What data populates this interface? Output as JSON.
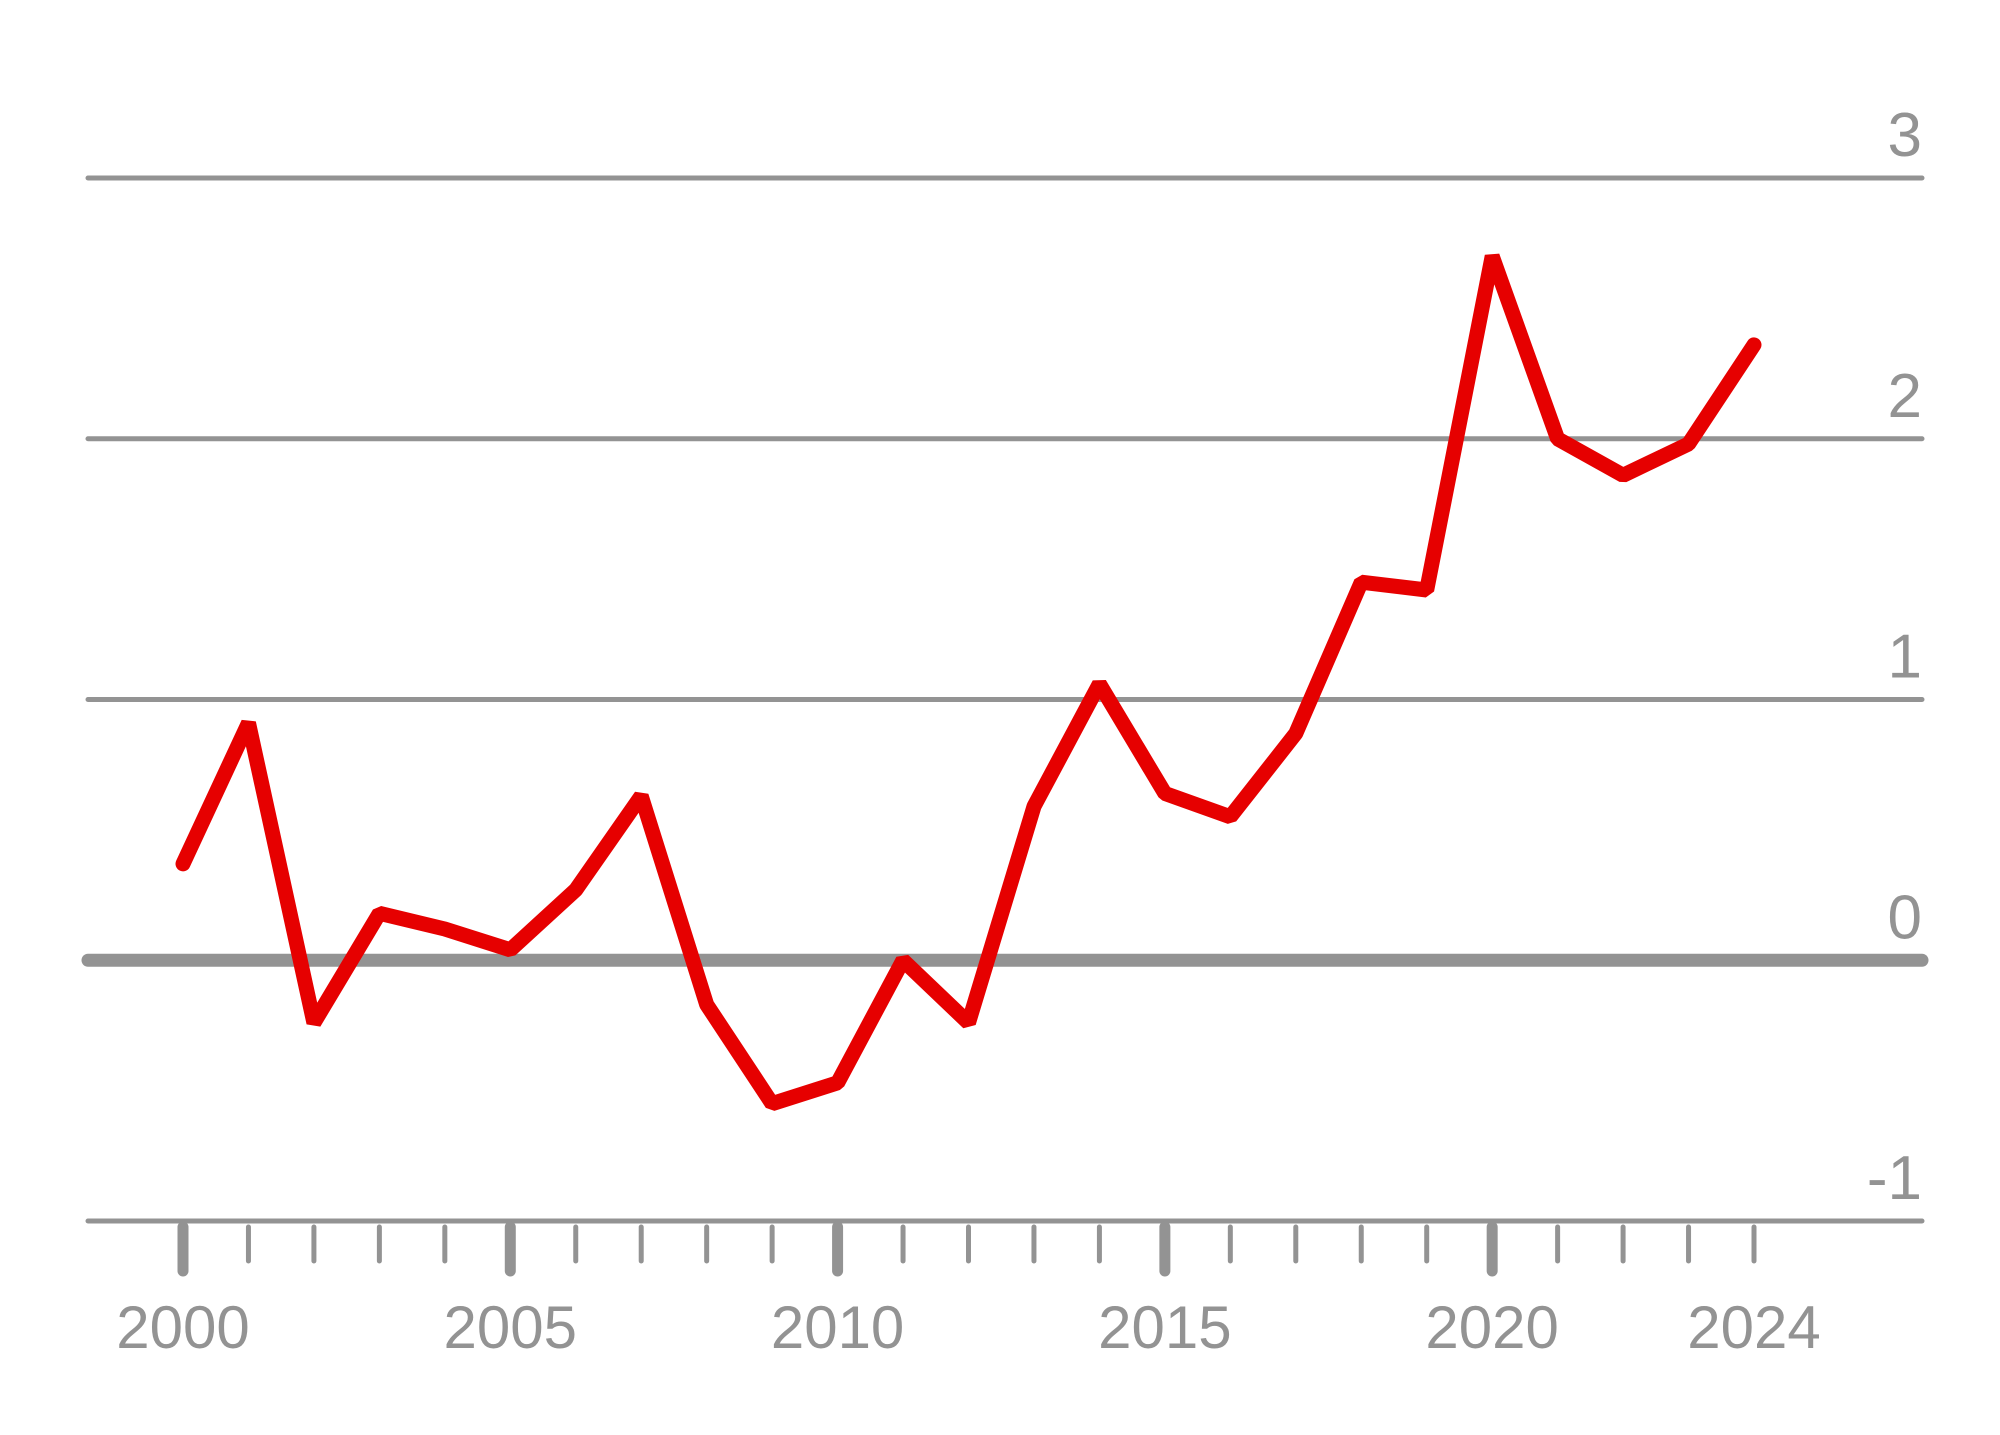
{
  "chart_data": {
    "type": "line",
    "title": "",
    "xlabel": "",
    "ylabel": "",
    "xlim": [
      2000,
      2024
    ],
    "ylim": [
      -1,
      3
    ],
    "grid": true,
    "y_ticks": [
      -1,
      0,
      1,
      2,
      3
    ],
    "y_tick_labels": [
      "-1",
      "0",
      "1",
      "2",
      "3"
    ],
    "x_tick_labels": [
      {
        "year": 2000,
        "label": "2000"
      },
      {
        "year": 2005,
        "label": "2005"
      },
      {
        "year": 2010,
        "label": "2010"
      },
      {
        "year": 2015,
        "label": "2015"
      },
      {
        "year": 2020,
        "label": "2020"
      },
      {
        "year": 2024,
        "label": "2024"
      }
    ],
    "series": [
      {
        "color": "#e60000",
        "x": [
          2000,
          2001,
          2002,
          2003,
          2004,
          2005,
          2006,
          2007,
          2008,
          2009,
          2010,
          2011,
          2012,
          2013,
          2014,
          2015,
          2016,
          2017,
          2018,
          2019,
          2020,
          2021,
          2022,
          2023,
          2024
        ],
        "values": [
          0.37,
          0.91,
          -0.24,
          0.18,
          0.12,
          0.04,
          0.27,
          0.63,
          -0.17,
          -0.55,
          -0.47,
          0.0,
          -0.24,
          0.59,
          1.06,
          0.64,
          0.55,
          0.87,
          1.45,
          1.42,
          2.7,
          2.0,
          1.86,
          1.98,
          2.36
        ]
      }
    ],
    "colors": {
      "axis": "#939393",
      "line": "#e60000"
    }
  }
}
